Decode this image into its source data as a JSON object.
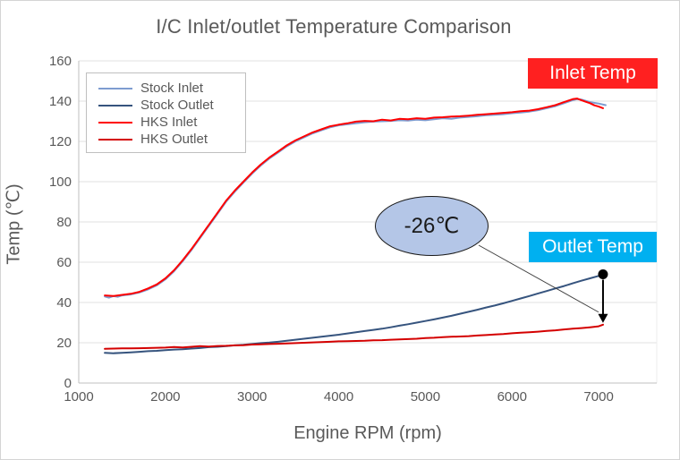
{
  "page": {
    "title": "I/C Inlet/outlet Temperature Comparison"
  },
  "chart_data": {
    "type": "line",
    "title": "I/C Inlet/outlet Temperature Comparison",
    "xlabel": "Engine RPM (rpm)",
    "ylabel": "Temp (℃)",
    "xlim": [
      1000,
      7670
    ],
    "ylim": [
      0,
      160
    ],
    "x_ticks": [
      1000,
      2000,
      3000,
      4000,
      5000,
      6000,
      7000
    ],
    "y_ticks": [
      0,
      20,
      40,
      60,
      80,
      100,
      120,
      140,
      160
    ],
    "grid": "horizontal",
    "legend_position": "top-left-inside",
    "axis_color": "#bfbfbf",
    "gridline_color": "#e0e0e0",
    "tick_label_color": "#595959",
    "series": [
      {
        "name": "Stock Inlet",
        "color": "#7e9cd0",
        "points": [
          [
            1300,
            43
          ],
          [
            1350,
            42.4
          ],
          [
            1400,
            43.2
          ],
          [
            1450,
            42.8
          ],
          [
            1500,
            43.5
          ],
          [
            1600,
            44
          ],
          [
            1700,
            45
          ],
          [
            1800,
            46.5
          ],
          [
            1900,
            48.5
          ],
          [
            2000,
            51.5
          ],
          [
            2100,
            55.5
          ],
          [
            2200,
            60.5
          ],
          [
            2300,
            66
          ],
          [
            2400,
            72
          ],
          [
            2500,
            78
          ],
          [
            2600,
            84
          ],
          [
            2700,
            90
          ],
          [
            2800,
            95
          ],
          [
            2900,
            99.5
          ],
          [
            3000,
            104
          ],
          [
            3100,
            108
          ],
          [
            3200,
            111.5
          ],
          [
            3300,
            114.5
          ],
          [
            3400,
            117.5
          ],
          [
            3500,
            120
          ],
          [
            3600,
            122
          ],
          [
            3700,
            124
          ],
          [
            3800,
            125.5
          ],
          [
            3900,
            127
          ],
          [
            4000,
            128
          ],
          [
            4100,
            128.5
          ],
          [
            4200,
            129
          ],
          [
            4300,
            129.5
          ],
          [
            4400,
            129.8
          ],
          [
            4500,
            130
          ],
          [
            4600,
            130.2
          ],
          [
            4700,
            130.5
          ],
          [
            4800,
            130.3
          ],
          [
            4900,
            130.8
          ],
          [
            5000,
            130.5
          ],
          [
            5100,
            131
          ],
          [
            5200,
            131.5
          ],
          [
            5300,
            131.2
          ],
          [
            5400,
            131.8
          ],
          [
            5500,
            132.2
          ],
          [
            5600,
            132.5
          ],
          [
            5700,
            133
          ],
          [
            5800,
            133.2
          ],
          [
            5900,
            133.5
          ],
          [
            6000,
            134
          ],
          [
            6100,
            134.3
          ],
          [
            6200,
            134.8
          ],
          [
            6300,
            135.5
          ],
          [
            6400,
            136.5
          ],
          [
            6500,
            137.5
          ],
          [
            6600,
            139
          ],
          [
            6700,
            140.5
          ],
          [
            6750,
            141
          ],
          [
            6800,
            140.8
          ],
          [
            6900,
            139.5
          ],
          [
            7000,
            138.8
          ],
          [
            7080,
            138
          ]
        ]
      },
      {
        "name": "Stock Outlet",
        "color": "#36547e",
        "points": [
          [
            1300,
            15
          ],
          [
            1400,
            14.8
          ],
          [
            1500,
            15
          ],
          [
            1600,
            15.2
          ],
          [
            1700,
            15.5
          ],
          [
            1800,
            15.8
          ],
          [
            1900,
            16
          ],
          [
            2000,
            16.3
          ],
          [
            2100,
            16.6
          ],
          [
            2200,
            16.8
          ],
          [
            2300,
            17.1
          ],
          [
            2400,
            17.4
          ],
          [
            2500,
            17.8
          ],
          [
            2600,
            18
          ],
          [
            2700,
            18.3
          ],
          [
            2800,
            18.7
          ],
          [
            2900,
            19
          ],
          [
            3000,
            19.4
          ],
          [
            3100,
            19.8
          ],
          [
            3200,
            20.1
          ],
          [
            3300,
            20.5
          ],
          [
            3400,
            21
          ],
          [
            3500,
            21.5
          ],
          [
            3600,
            22
          ],
          [
            3700,
            22.5
          ],
          [
            3800,
            23
          ],
          [
            3900,
            23.5
          ],
          [
            4000,
            24
          ],
          [
            4100,
            24.6
          ],
          [
            4200,
            25.2
          ],
          [
            4300,
            25.8
          ],
          [
            4400,
            26.4
          ],
          [
            4500,
            27
          ],
          [
            4600,
            27.7
          ],
          [
            4700,
            28.5
          ],
          [
            4800,
            29.2
          ],
          [
            4900,
            30
          ],
          [
            5000,
            30.8
          ],
          [
            5100,
            31.6
          ],
          [
            5200,
            32.5
          ],
          [
            5300,
            33.4
          ],
          [
            5400,
            34.4
          ],
          [
            5500,
            35.4
          ],
          [
            5600,
            36.4
          ],
          [
            5700,
            37.5
          ],
          [
            5800,
            38.5
          ],
          [
            5900,
            39.6
          ],
          [
            6000,
            40.8
          ],
          [
            6100,
            42
          ],
          [
            6200,
            43.2
          ],
          [
            6300,
            44.5
          ],
          [
            6400,
            45.7
          ],
          [
            6500,
            47
          ],
          [
            6600,
            48.2
          ],
          [
            6700,
            49.5
          ],
          [
            6800,
            50.8
          ],
          [
            6900,
            52
          ],
          [
            7000,
            53.2
          ],
          [
            7050,
            54
          ]
        ]
      },
      {
        "name": "HKS Inlet",
        "color": "#ff0000",
        "points": [
          [
            1300,
            43.5
          ],
          [
            1400,
            43.2
          ],
          [
            1500,
            43.8
          ],
          [
            1600,
            44.3
          ],
          [
            1700,
            45.3
          ],
          [
            1800,
            47
          ],
          [
            1900,
            49
          ],
          [
            2000,
            52
          ],
          [
            2100,
            56
          ],
          [
            2200,
            61
          ],
          [
            2300,
            66.5
          ],
          [
            2400,
            72.5
          ],
          [
            2500,
            78.5
          ],
          [
            2600,
            84.5
          ],
          [
            2700,
            90.5
          ],
          [
            2800,
            95.5
          ],
          [
            2900,
            100
          ],
          [
            3000,
            104.5
          ],
          [
            3100,
            108.5
          ],
          [
            3200,
            112
          ],
          [
            3300,
            115
          ],
          [
            3400,
            118
          ],
          [
            3500,
            120.5
          ],
          [
            3600,
            122.5
          ],
          [
            3700,
            124.5
          ],
          [
            3800,
            126
          ],
          [
            3900,
            127.5
          ],
          [
            4000,
            128.3
          ],
          [
            4100,
            129
          ],
          [
            4200,
            129.8
          ],
          [
            4300,
            130.2
          ],
          [
            4400,
            130
          ],
          [
            4500,
            130.8
          ],
          [
            4600,
            130.4
          ],
          [
            4700,
            131.2
          ],
          [
            4800,
            131
          ],
          [
            4900,
            131.5
          ],
          [
            5000,
            131.2
          ],
          [
            5100,
            131.8
          ],
          [
            5200,
            132
          ],
          [
            5300,
            132.3
          ],
          [
            5400,
            132.5
          ],
          [
            5500,
            132.8
          ],
          [
            5600,
            133.2
          ],
          [
            5700,
            133.5
          ],
          [
            5800,
            133.8
          ],
          [
            5900,
            134.2
          ],
          [
            6000,
            134.5
          ],
          [
            6100,
            135
          ],
          [
            6200,
            135.3
          ],
          [
            6300,
            136
          ],
          [
            6400,
            137
          ],
          [
            6500,
            138
          ],
          [
            6600,
            139.5
          ],
          [
            6700,
            141
          ],
          [
            6750,
            141.3
          ],
          [
            6800,
            140.5
          ],
          [
            6850,
            139.7
          ],
          [
            6900,
            139
          ],
          [
            6950,
            137.9
          ],
          [
            7000,
            137.3
          ],
          [
            7050,
            136.5
          ]
        ]
      },
      {
        "name": "HKS Outlet",
        "color": "#d40000",
        "points": [
          [
            1300,
            17
          ],
          [
            1400,
            17.1
          ],
          [
            1500,
            17.2
          ],
          [
            1600,
            17.2
          ],
          [
            1700,
            17.3
          ],
          [
            1800,
            17.4
          ],
          [
            1900,
            17.5
          ],
          [
            2000,
            17.6
          ],
          [
            2100,
            17.9
          ],
          [
            2200,
            17.7
          ],
          [
            2300,
            18
          ],
          [
            2400,
            18.3
          ],
          [
            2500,
            18.1
          ],
          [
            2600,
            18.4
          ],
          [
            2700,
            18.5
          ],
          [
            2800,
            18.7
          ],
          [
            2900,
            18.8
          ],
          [
            3000,
            19.1
          ],
          [
            3100,
            19.2
          ],
          [
            3200,
            19.4
          ],
          [
            3300,
            19.5
          ],
          [
            3400,
            19.7
          ],
          [
            3500,
            19.8
          ],
          [
            3600,
            20
          ],
          [
            3700,
            20.2
          ],
          [
            3800,
            20.3
          ],
          [
            3900,
            20.5
          ],
          [
            4000,
            20.7
          ],
          [
            4100,
            20.8
          ],
          [
            4200,
            20.9
          ],
          [
            4300,
            21
          ],
          [
            4400,
            21.2
          ],
          [
            4500,
            21.3
          ],
          [
            4600,
            21.5
          ],
          [
            4700,
            21.7
          ],
          [
            4800,
            21.8
          ],
          [
            4900,
            22
          ],
          [
            5000,
            22.3
          ],
          [
            5100,
            22.5
          ],
          [
            5200,
            22.8
          ],
          [
            5300,
            23
          ],
          [
            5400,
            23.1
          ],
          [
            5500,
            23.3
          ],
          [
            5600,
            23.6
          ],
          [
            5700,
            23.8
          ],
          [
            5800,
            24.1
          ],
          [
            5900,
            24.3
          ],
          [
            6000,
            24.7
          ],
          [
            6100,
            25
          ],
          [
            6200,
            25.2
          ],
          [
            6300,
            25.5
          ],
          [
            6400,
            25.9
          ],
          [
            6500,
            26.2
          ],
          [
            6600,
            26.6
          ],
          [
            6700,
            27
          ],
          [
            6800,
            27.3
          ],
          [
            6900,
            27.7
          ],
          [
            7000,
            28.2
          ],
          [
            7050,
            29
          ]
        ]
      }
    ],
    "annotations": {
      "inlet_label": {
        "text": "Inlet Temp",
        "bg": "#ff2020",
        "fg": "#ffffff"
      },
      "outlet_label": {
        "text": "Outlet Temp",
        "bg": "#00b0f0",
        "fg": "#ffffff"
      },
      "delta_callout": {
        "text": "-26℃",
        "fill": "#b4c6e7",
        "border": "#1a1a1a"
      }
    }
  }
}
